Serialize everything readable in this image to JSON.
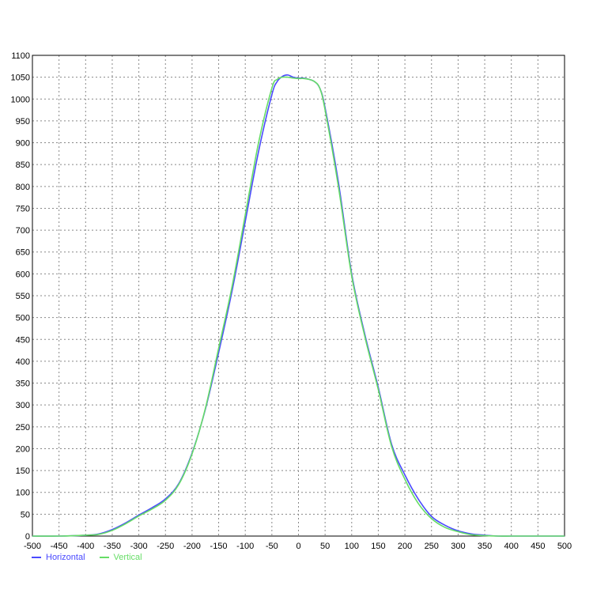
{
  "chart_data": {
    "type": "line",
    "title": "",
    "xlabel": "",
    "ylabel": "",
    "xlim": [
      -500,
      500
    ],
    "ylim": [
      0,
      1100
    ],
    "x_ticks": [
      -500,
      -450,
      -400,
      -350,
      -300,
      -250,
      -200,
      -150,
      -100,
      -50,
      0,
      50,
      100,
      150,
      200,
      250,
      300,
      350,
      400,
      450,
      500
    ],
    "y_ticks": [
      0,
      50,
      100,
      150,
      200,
      250,
      300,
      350,
      400,
      450,
      500,
      550,
      600,
      650,
      700,
      750,
      800,
      850,
      900,
      950,
      1000,
      1050,
      1100
    ],
    "grid": true,
    "legend_position": "bottom-left",
    "series": [
      {
        "name": "Horizontal",
        "color": "#4a4aff",
        "x": [
          -500,
          -450,
          -400,
          -375,
          -350,
          -325,
          -300,
          -275,
          -250,
          -225,
          -200,
          -175,
          -150,
          -125,
          -100,
          -75,
          -50,
          -40,
          -30,
          -20,
          -10,
          0,
          10,
          20,
          30,
          40,
          50,
          75,
          100,
          125,
          150,
          175,
          200,
          225,
          250,
          275,
          300,
          325,
          350,
          375,
          400,
          425,
          450,
          500
        ],
        "y": [
          0,
          0,
          2,
          5,
          15,
          30,
          48,
          65,
          85,
          120,
          190,
          290,
          420,
          560,
          720,
          880,
          1010,
          1040,
          1052,
          1055,
          1050,
          1048,
          1048,
          1045,
          1040,
          1025,
          980,
          810,
          600,
          460,
          340,
          210,
          140,
          85,
          45,
          25,
          12,
          5,
          2,
          0,
          0,
          0,
          0,
          0
        ]
      },
      {
        "name": "Vertical",
        "color": "#66dd66",
        "x": [
          -500,
          -450,
          -400,
          -375,
          -350,
          -325,
          -300,
          -275,
          -250,
          -225,
          -200,
          -175,
          -150,
          -125,
          -100,
          -75,
          -50,
          -40,
          -30,
          -20,
          -10,
          0,
          10,
          20,
          30,
          40,
          50,
          75,
          100,
          125,
          150,
          175,
          200,
          225,
          250,
          275,
          300,
          325,
          350,
          375,
          400,
          425,
          450,
          500
        ],
        "y": [
          0,
          0,
          2,
          4,
          13,
          28,
          46,
          62,
          82,
          118,
          188,
          292,
          430,
          570,
          735,
          900,
          1025,
          1045,
          1050,
          1050,
          1048,
          1047,
          1047,
          1045,
          1040,
          1025,
          975,
          800,
          595,
          455,
          335,
          205,
          130,
          75,
          40,
          20,
          10,
          3,
          1,
          0,
          0,
          0,
          0,
          0
        ]
      }
    ]
  }
}
